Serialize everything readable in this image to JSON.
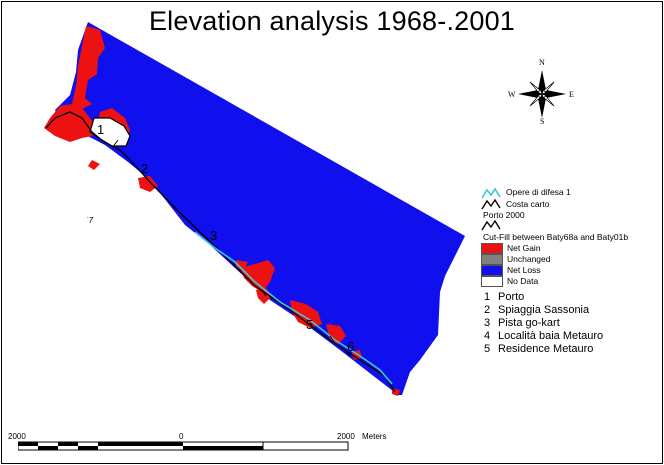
{
  "title": "Elevation analysis 1968-.2001",
  "colors": {
    "net_gain": "#ee1111",
    "unchanged": "#808080",
    "net_loss": "#1010ee",
    "no_data": "#ffffff",
    "opere_line": "#3ec8d8",
    "coast_line": "#000000"
  },
  "legend": {
    "opere": "Opere di difesa 1",
    "costa": "Costa carto",
    "porto": "Porto 2000",
    "cutfill": "Cut-Fill between Baty68a and Baty01b",
    "classes": [
      {
        "key": "net_gain",
        "label": "Net Gain"
      },
      {
        "key": "unchanged",
        "label": "Unchanged"
      },
      {
        "key": "net_loss",
        "label": "Net Loss"
      },
      {
        "key": "no_data",
        "label": "No Data"
      }
    ]
  },
  "sites": [
    {
      "num": "1",
      "name": "Porto"
    },
    {
      "num": "2",
      "name": "Spiaggia Sassonia"
    },
    {
      "num": "3",
      "name": "Pista go-kart"
    },
    {
      "num": "4",
      "name": "Località baia Metauro"
    },
    {
      "num": "5",
      "name": "Residence Metauro"
    }
  ],
  "map_labels": [
    "1",
    "2",
    "3",
    "5",
    "6"
  ],
  "north_arrow": {
    "n": "N",
    "s": "S",
    "e": "E",
    "w": "W"
  },
  "scale_bar": {
    "left": "2000",
    "center": "0",
    "right": "2000",
    "unit": "Meters"
  }
}
